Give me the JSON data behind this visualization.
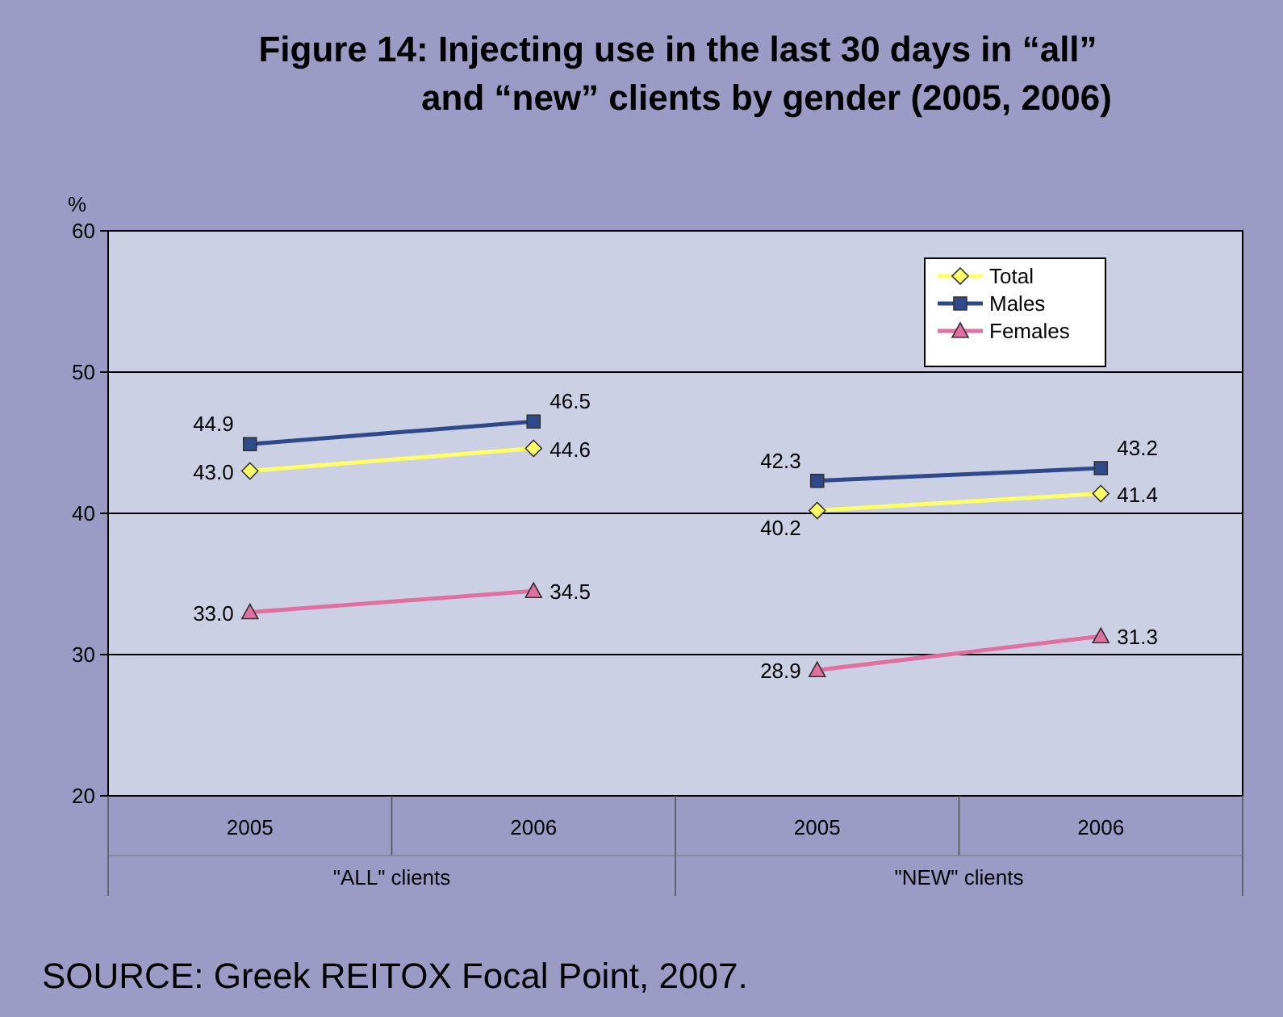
{
  "chart_data": {
    "type": "line",
    "title": "Figure 14: Injecting use in the last 30 days in “all”\nand “new” clients by gender (2005, 2006)",
    "ylabel": "%",
    "categories": [
      "2005",
      "2006",
      "2005",
      "2006"
    ],
    "series": [
      {
        "name": "Total",
        "color": "#ffff66",
        "marker": "diamond",
        "values": [
          43.0,
          44.6,
          null,
          null
        ],
        "value_labels": [
          "43.0",
          "44.6",
          null,
          null
        ]
      },
      {
        "name": "Males",
        "color": "#2e4a8a",
        "marker": "square",
        "values": [
          44.9,
          46.5,
          null,
          null
        ],
        "value_labels": [
          "44.9",
          "46.5",
          null,
          null
        ]
      },
      {
        "name": "Females",
        "color": "#e070a0",
        "marker": "triangle",
        "values": [
          33.0,
          34.5,
          null,
          null
        ],
        "value_labels": [
          "33.0",
          "34.5",
          null,
          null
        ]
      },
      {
        "color": "#ffff66",
        "marker": "diamond",
        "values": [
          null,
          null,
          40.2,
          41.4
        ],
        "value_labels": [
          null,
          null,
          "40.2",
          "41.4"
        ]
      },
      {
        "color": "#2e4a8a",
        "marker": "square",
        "values": [
          null,
          null,
          42.3,
          43.2
        ],
        "value_labels": [
          null,
          null,
          "42.3",
          "43.2"
        ]
      },
      {
        "color": "#e070a0",
        "marker": "triangle",
        "values": [
          null,
          null,
          28.9,
          31.3
        ],
        "value_labels": [
          null,
          null,
          "28.9",
          "31.3"
        ]
      }
    ],
    "ylim": [
      20,
      60
    ],
    "yticks": [
      20,
      30,
      40,
      50,
      60
    ],
    "grid": "y",
    "legend": "top right",
    "annotations": [
      "\"ALL\" clients",
      "\"NEW\" clients",
      "SOURCE: Greek REITOX Focal Point, 2007."
    ]
  }
}
